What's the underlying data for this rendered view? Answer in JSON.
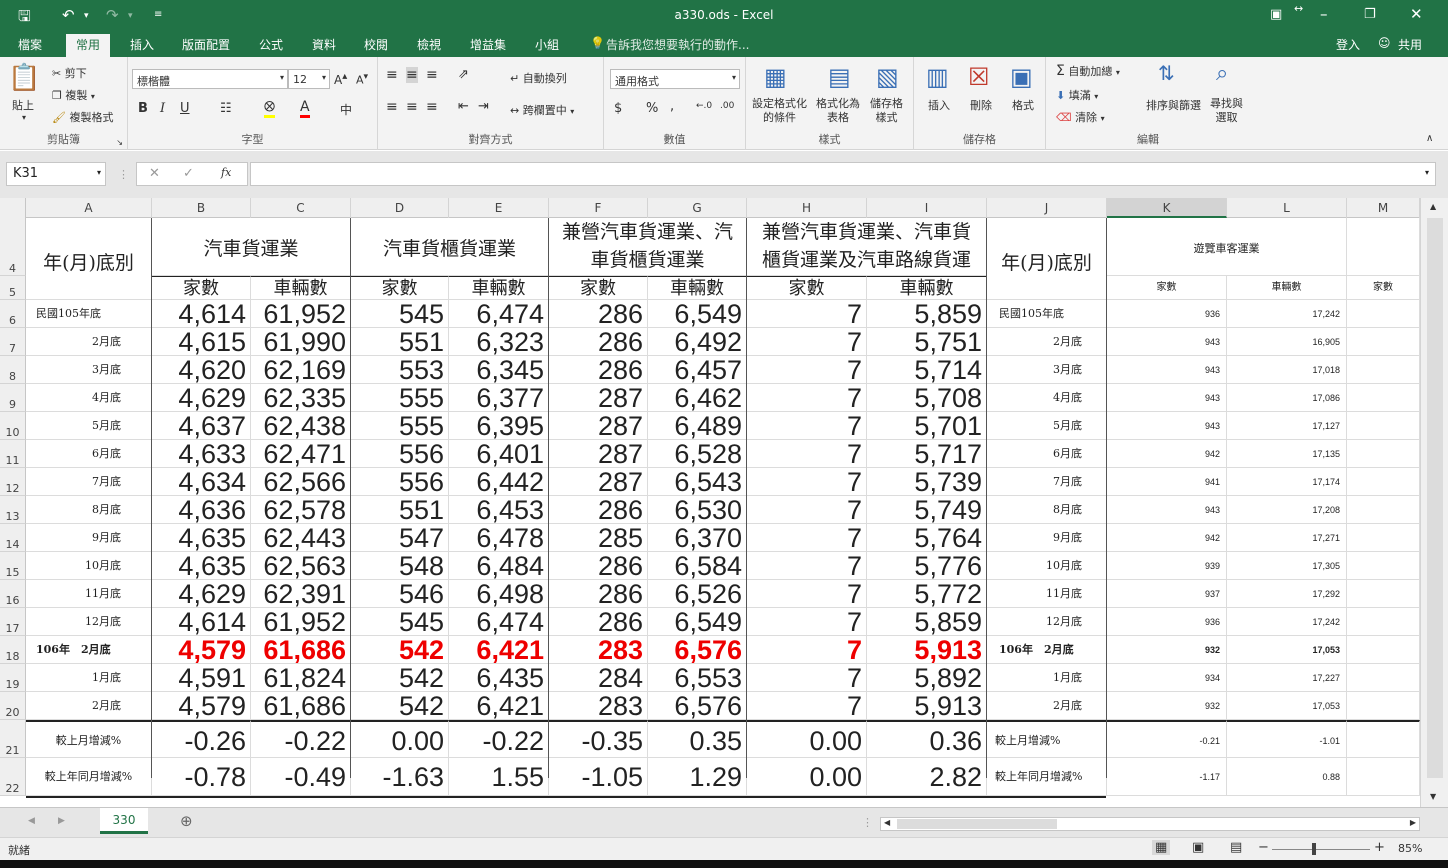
{
  "window": {
    "title": "a330.ods - Excel"
  },
  "quick_access": {
    "save": "save-icon",
    "undo": "undo-icon",
    "redo": "redo-icon",
    "customize": "customize-icon"
  },
  "tabs": [
    "檔案",
    "常用",
    "插入",
    "版面配置",
    "公式",
    "資料",
    "校閱",
    "檢視",
    "增益集",
    "小組"
  ],
  "tell_me": "告訴我您想要執行的動作...",
  "account": {
    "signin": "登入",
    "share": "共用"
  },
  "ribbon": {
    "clipboard": {
      "paste": "貼上",
      "cut": "剪下",
      "copy": "複製",
      "format_painter": "複製格式",
      "label": "剪貼簿"
    },
    "font": {
      "name": "標楷體",
      "size": "12",
      "bold": "B",
      "italic": "I",
      "underline": "U",
      "label": "字型"
    },
    "alignment": {
      "wrap": "自動換列",
      "merge": "跨欄置中",
      "label": "對齊方式"
    },
    "number": {
      "format": "通用格式",
      "label": "數值"
    },
    "styles": {
      "conditional": [
        "設定格式化",
        "的條件"
      ],
      "table": [
        "格式化為",
        "表格"
      ],
      "cell": [
        "儲存格",
        "樣式"
      ],
      "label": "樣式"
    },
    "cells": {
      "insert": "插入",
      "delete": "刪除",
      "format": "格式",
      "label": "儲存格"
    },
    "editing": {
      "autosum": "自動加總",
      "fill": "填滿",
      "clear": "清除",
      "sort": [
        "排序與篩選",
        ""
      ],
      "find": [
        "尋找與",
        "選取"
      ],
      "label": "編輯"
    }
  },
  "formula_bar": {
    "name_box": "K31",
    "fx": "fx",
    "formula": ""
  },
  "columns": [
    "A",
    "B",
    "C",
    "D",
    "E",
    "F",
    "G",
    "H",
    "I",
    "J",
    "K",
    "L",
    "M"
  ],
  "header": {
    "row4": {
      "A": "年(月)底別",
      "BC": "汽車貨運業",
      "DE": "汽車貨櫃貨運業",
      "FG": [
        "兼營汽車貨運業、汽",
        "車貨櫃貨運業"
      ],
      "HI": [
        "兼營汽車貨運業、汽車貨",
        "櫃貨運業及汽車路線貨運"
      ],
      "J": "年(月)底別",
      "KL": "遊覽車客運業"
    },
    "row5": {
      "B": "家數",
      "C": "車輛數",
      "D": "家數",
      "E": "車輛數",
      "F": "家數",
      "G": "車輛數",
      "H": "家數",
      "I": "車輛數",
      "K": "家數",
      "L": "車輛數",
      "M": "家數"
    }
  },
  "rows": [
    {
      "num": "6",
      "A": "民國105年底",
      "B": "4,614",
      "C": "61,952",
      "D": "545",
      "E": "6,474",
      "F": "286",
      "G": "6,549",
      "H": "7",
      "I": "5,859",
      "J": "民國105年底",
      "K": "936",
      "L": "17,242"
    },
    {
      "num": "7",
      "A": "2月底",
      "B": "4,615",
      "C": "61,990",
      "D": "551",
      "E": "6,323",
      "F": "286",
      "G": "6,492",
      "H": "7",
      "I": "5,751",
      "J": "2月底",
      "K": "943",
      "L": "16,905"
    },
    {
      "num": "8",
      "A": "3月底",
      "B": "4,620",
      "C": "62,169",
      "D": "553",
      "E": "6,345",
      "F": "286",
      "G": "6,457",
      "H": "7",
      "I": "5,714",
      "J": "3月底",
      "K": "943",
      "L": "17,018"
    },
    {
      "num": "9",
      "A": "4月底",
      "B": "4,629",
      "C": "62,335",
      "D": "555",
      "E": "6,377",
      "F": "287",
      "G": "6,462",
      "H": "7",
      "I": "5,708",
      "J": "4月底",
      "K": "943",
      "L": "17,086"
    },
    {
      "num": "10",
      "A": "5月底",
      "B": "4,637",
      "C": "62,438",
      "D": "555",
      "E": "6,395",
      "F": "287",
      "G": "6,489",
      "H": "7",
      "I": "5,701",
      "J": "5月底",
      "K": "943",
      "L": "17,127"
    },
    {
      "num": "11",
      "A": "6月底",
      "B": "4,633",
      "C": "62,471",
      "D": "556",
      "E": "6,401",
      "F": "287",
      "G": "6,528",
      "H": "7",
      "I": "5,717",
      "J": "6月底",
      "K": "942",
      "L": "17,135"
    },
    {
      "num": "12",
      "A": "7月底",
      "B": "4,634",
      "C": "62,566",
      "D": "556",
      "E": "6,442",
      "F": "287",
      "G": "6,543",
      "H": "7",
      "I": "5,739",
      "J": "7月底",
      "K": "941",
      "L": "17,174"
    },
    {
      "num": "13",
      "A": "8月底",
      "B": "4,636",
      "C": "62,578",
      "D": "551",
      "E": "6,453",
      "F": "286",
      "G": "6,530",
      "H": "7",
      "I": "5,749",
      "J": "8月底",
      "K": "943",
      "L": "17,208"
    },
    {
      "num": "14",
      "A": "9月底",
      "B": "4,635",
      "C": "62,443",
      "D": "547",
      "E": "6,478",
      "F": "285",
      "G": "6,370",
      "H": "7",
      "I": "5,764",
      "J": "9月底",
      "K": "942",
      "L": "17,271"
    },
    {
      "num": "15",
      "A": "10月底",
      "B": "4,635",
      "C": "62,563",
      "D": "548",
      "E": "6,484",
      "F": "286",
      "G": "6,584",
      "H": "7",
      "I": "5,776",
      "J": "10月底",
      "K": "939",
      "L": "17,305"
    },
    {
      "num": "16",
      "A": "11月底",
      "B": "4,629",
      "C": "62,391",
      "D": "546",
      "E": "6,498",
      "F": "286",
      "G": "6,526",
      "H": "7",
      "I": "5,772",
      "J": "11月底",
      "K": "937",
      "L": "17,292"
    },
    {
      "num": "17",
      "A": "12月底",
      "B": "4,614",
      "C": "61,952",
      "D": "545",
      "E": "6,474",
      "F": "286",
      "G": "6,549",
      "H": "7",
      "I": "5,859",
      "J": "12月底",
      "K": "936",
      "L": "17,242"
    },
    {
      "num": "18",
      "A": "106年　2月底",
      "B": "4,579",
      "C": "61,686",
      "D": "542",
      "E": "6,421",
      "F": "283",
      "G": "6,576",
      "H": "7",
      "I": "5,913",
      "J": "106年　2月底",
      "K": "932",
      "L": "17,053",
      "highlight": true
    },
    {
      "num": "19",
      "A": "1月底",
      "B": "4,591",
      "C": "61,824",
      "D": "542",
      "E": "6,435",
      "F": "284",
      "G": "6,553",
      "H": "7",
      "I": "5,892",
      "J": "1月底",
      "K": "934",
      "L": "17,227"
    },
    {
      "num": "20",
      "A": "2月底",
      "B": "4,579",
      "C": "61,686",
      "D": "542",
      "E": "6,421",
      "F": "283",
      "G": "6,576",
      "H": "7",
      "I": "5,913",
      "J": "2月底",
      "K": "932",
      "L": "17,053"
    }
  ],
  "change_rows": [
    {
      "num": "21",
      "A": "較上月增減%",
      "B": "-0.26",
      "C": "-0.22",
      "D": "0.00",
      "E": "-0.22",
      "F": "-0.35",
      "G": "0.35",
      "H": "0.00",
      "I": "0.36",
      "J": "較上月增減%",
      "K": "-0.21",
      "L": "-1.01"
    },
    {
      "num": "22",
      "A": "較上年同月增減%",
      "B": "-0.78",
      "C": "-0.49",
      "D": "-1.63",
      "E": "1.55",
      "F": "-1.05",
      "G": "1.29",
      "H": "0.00",
      "I": "2.82",
      "J": "較上年同月增減%",
      "K": "-1.17",
      "L": "0.88"
    }
  ],
  "sheet_tab": "330",
  "status": {
    "ready": "就緒",
    "zoom": "85%"
  },
  "colors": {
    "excel_green": "#217346",
    "highlight_red": "#e00000"
  }
}
